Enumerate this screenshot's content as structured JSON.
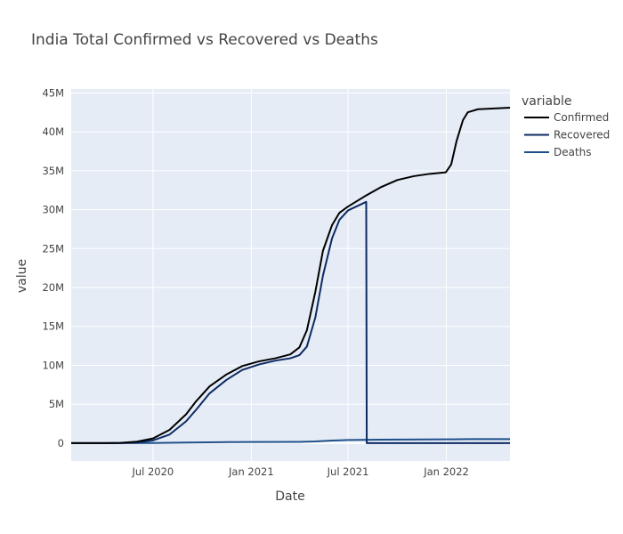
{
  "chart_data": {
    "type": "line",
    "title": "India Total Confirmed vs Recovered vs Deaths",
    "xlabel": "Date",
    "ylabel": "value",
    "x_tick_labels": [
      "Jul 2020",
      "Jan 2021",
      "Jul 2021",
      "Jan 2022"
    ],
    "y_tick_labels": [
      "0",
      "5M",
      "10M",
      "15M",
      "20M",
      "25M",
      "30M",
      "35M",
      "40M",
      "45M"
    ],
    "xlim": [
      "2020-01-30",
      "2022-04-30"
    ],
    "ylim": [
      -2300000,
      45500000
    ],
    "grid": true,
    "legend": {
      "title": "variable",
      "position": "top-right"
    },
    "series": [
      {
        "name": "Confirmed",
        "color": "#000000",
        "points": [
          [
            "2020-01-30",
            0
          ],
          [
            "2020-04-01",
            2000
          ],
          [
            "2020-05-01",
            35000
          ],
          [
            "2020-06-01",
            190000
          ],
          [
            "2020-07-01",
            600000
          ],
          [
            "2020-08-01",
            1700000
          ],
          [
            "2020-09-01",
            3700000
          ],
          [
            "2020-09-20",
            5400000
          ],
          [
            "2020-10-15",
            7300000
          ],
          [
            "2020-11-15",
            8800000
          ],
          [
            "2020-12-15",
            9900000
          ],
          [
            "2021-01-15",
            10500000
          ],
          [
            "2021-02-15",
            10900000
          ],
          [
            "2021-03-15",
            11400000
          ],
          [
            "2021-04-01",
            12300000
          ],
          [
            "2021-04-15",
            14500000
          ],
          [
            "2021-05-01",
            19500000
          ],
          [
            "2021-05-15",
            24700000
          ],
          [
            "2021-06-01",
            28000000
          ],
          [
            "2021-06-15",
            29600000
          ],
          [
            "2021-07-01",
            30400000
          ],
          [
            "2021-08-01",
            31700000
          ],
          [
            "2021-09-01",
            32900000
          ],
          [
            "2021-10-01",
            33800000
          ],
          [
            "2021-11-01",
            34300000
          ],
          [
            "2021-12-01",
            34600000
          ],
          [
            "2021-12-31",
            34800000
          ],
          [
            "2022-01-10",
            35800000
          ],
          [
            "2022-01-20",
            38800000
          ],
          [
            "2022-02-01",
            41500000
          ],
          [
            "2022-02-10",
            42500000
          ],
          [
            "2022-03-01",
            42900000
          ],
          [
            "2022-04-30",
            43100000
          ]
        ]
      },
      {
        "name": "Recovered",
        "color": "#0d2a63",
        "points": [
          [
            "2020-01-30",
            0
          ],
          [
            "2020-04-01",
            500
          ],
          [
            "2020-05-01",
            10000
          ],
          [
            "2020-06-01",
            90000
          ],
          [
            "2020-07-01",
            350000
          ],
          [
            "2020-08-01",
            1100000
          ],
          [
            "2020-09-01",
            2800000
          ],
          [
            "2020-09-20",
            4300000
          ],
          [
            "2020-10-15",
            6400000
          ],
          [
            "2020-11-15",
            8100000
          ],
          [
            "2020-12-15",
            9400000
          ],
          [
            "2021-01-15",
            10100000
          ],
          [
            "2021-02-15",
            10600000
          ],
          [
            "2021-03-15",
            10900000
          ],
          [
            "2021-04-01",
            11300000
          ],
          [
            "2021-04-15",
            12400000
          ],
          [
            "2021-05-01",
            16200000
          ],
          [
            "2021-05-15",
            21500000
          ],
          [
            "2021-06-01",
            26300000
          ],
          [
            "2021-06-15",
            28700000
          ],
          [
            "2021-07-01",
            29900000
          ],
          [
            "2021-08-04",
            31000000
          ],
          [
            "2021-08-05",
            0
          ],
          [
            "2022-04-30",
            0
          ]
        ]
      },
      {
        "name": "Deaths",
        "color": "#1f4f8a",
        "points": [
          [
            "2020-01-30",
            0
          ],
          [
            "2020-05-01",
            1100
          ],
          [
            "2020-07-01",
            17000
          ],
          [
            "2020-09-01",
            66000
          ],
          [
            "2020-11-01",
            122000
          ],
          [
            "2021-01-01",
            149000
          ],
          [
            "2021-04-01",
            162000
          ],
          [
            "2021-05-01",
            211000
          ],
          [
            "2021-06-01",
            330000
          ],
          [
            "2021-07-01",
            400000
          ],
          [
            "2021-09-01",
            440000
          ],
          [
            "2022-01-01",
            481000
          ],
          [
            "2022-02-15",
            510000
          ],
          [
            "2022-04-30",
            522000
          ]
        ]
      }
    ]
  }
}
